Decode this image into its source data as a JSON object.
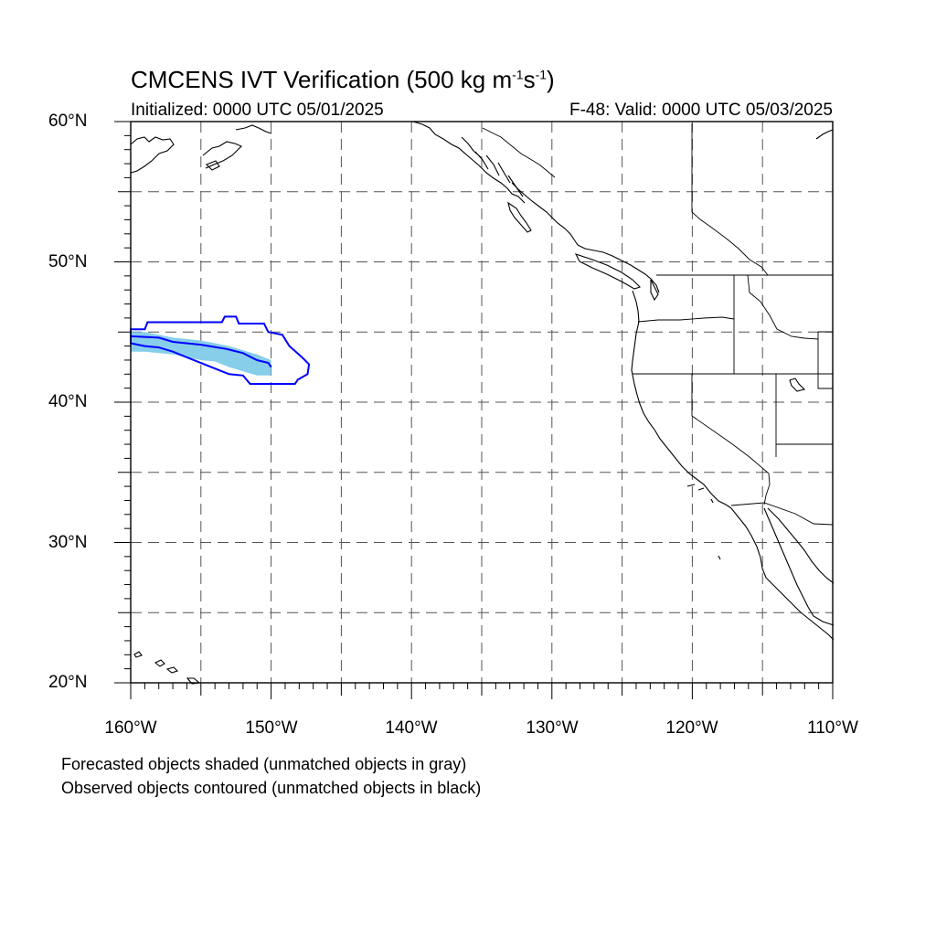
{
  "title": {
    "prefix": "CMCENS IVT Verification (500 kg m",
    "exp1": "-1",
    "mid": "s",
    "exp2": "-1",
    "suffix": ")"
  },
  "initialized": "Initialized: 0000 UTC 05/01/2025",
  "valid": "F-48: Valid: 0000 UTC 05/03/2025",
  "map": {
    "projection": "cylindrical equidistant",
    "lon_range": [
      -160,
      -110
    ],
    "lat_range": [
      20,
      60
    ],
    "gridline_style": "dashed",
    "lat_labels": [
      "60°N",
      "50°N",
      "40°N",
      "30°N",
      "20°N"
    ],
    "lon_labels": [
      "160°W",
      "150°W",
      "140°W",
      "130°W",
      "120°W",
      "110°W"
    ]
  },
  "objects": {
    "forecast_color": "#87ceeb",
    "observed_color": "#0000ff",
    "forecast_object": [
      [
        -160,
        45.0
      ],
      [
        -159,
        45.0
      ],
      [
        -158,
        44.8
      ],
      [
        -157,
        44.6
      ],
      [
        -156,
        44.5
      ],
      [
        -155,
        44.4
      ],
      [
        -154,
        44.2
      ],
      [
        -153,
        44.0
      ],
      [
        -152,
        43.7
      ],
      [
        -151,
        43.4
      ],
      [
        -150,
        43.0
      ],
      [
        -150,
        41.9
      ],
      [
        -151,
        41.9
      ],
      [
        -152,
        42.2
      ],
      [
        -153,
        42.5
      ],
      [
        -154,
        42.9
      ],
      [
        -155,
        43.0
      ],
      [
        -156,
        43.2
      ],
      [
        -157,
        43.4
      ],
      [
        -158,
        43.5
      ],
      [
        -159,
        43.6
      ],
      [
        -160,
        43.6
      ]
    ],
    "observed_object": [
      [
        -160,
        45.2
      ],
      [
        -159,
        45.2
      ],
      [
        -158.8,
        45.7
      ],
      [
        -153.5,
        45.7
      ],
      [
        -153.3,
        46.1
      ],
      [
        -152.5,
        46.1
      ],
      [
        -152.3,
        45.6
      ],
      [
        -150.5,
        45.6
      ],
      [
        -150.2,
        45.0
      ],
      [
        -149.2,
        44.8
      ],
      [
        -148.7,
        44.0
      ],
      [
        -147.8,
        43.2
      ],
      [
        -147.3,
        42.7
      ],
      [
        -147.4,
        42.0
      ],
      [
        -148.1,
        41.6
      ],
      [
        -148.3,
        41.3
      ],
      [
        -151.5,
        41.3
      ],
      [
        -152,
        41.9
      ],
      [
        -153,
        42.0
      ],
      [
        -154,
        42.4
      ],
      [
        -156,
        43.2
      ],
      [
        -157,
        43.6
      ],
      [
        -158,
        43.9
      ],
      [
        -159,
        44.0
      ],
      [
        -160,
        44.2
      ]
    ],
    "observed_centerline": [
      [
        -160,
        44.7
      ],
      [
        -158,
        44.6
      ],
      [
        -157,
        44.3
      ],
      [
        -155,
        44.1
      ],
      [
        -153.2,
        43.8
      ],
      [
        -152,
        43.5
      ],
      [
        -151,
        43.0
      ],
      [
        -150.2,
        42.8
      ],
      [
        -150.0,
        42.5
      ]
    ]
  },
  "notes": {
    "forecast": "Forecasted objects shaded (unmatched objects in gray)",
    "observed": "Observed objects contoured (unmatched objects in black)"
  }
}
